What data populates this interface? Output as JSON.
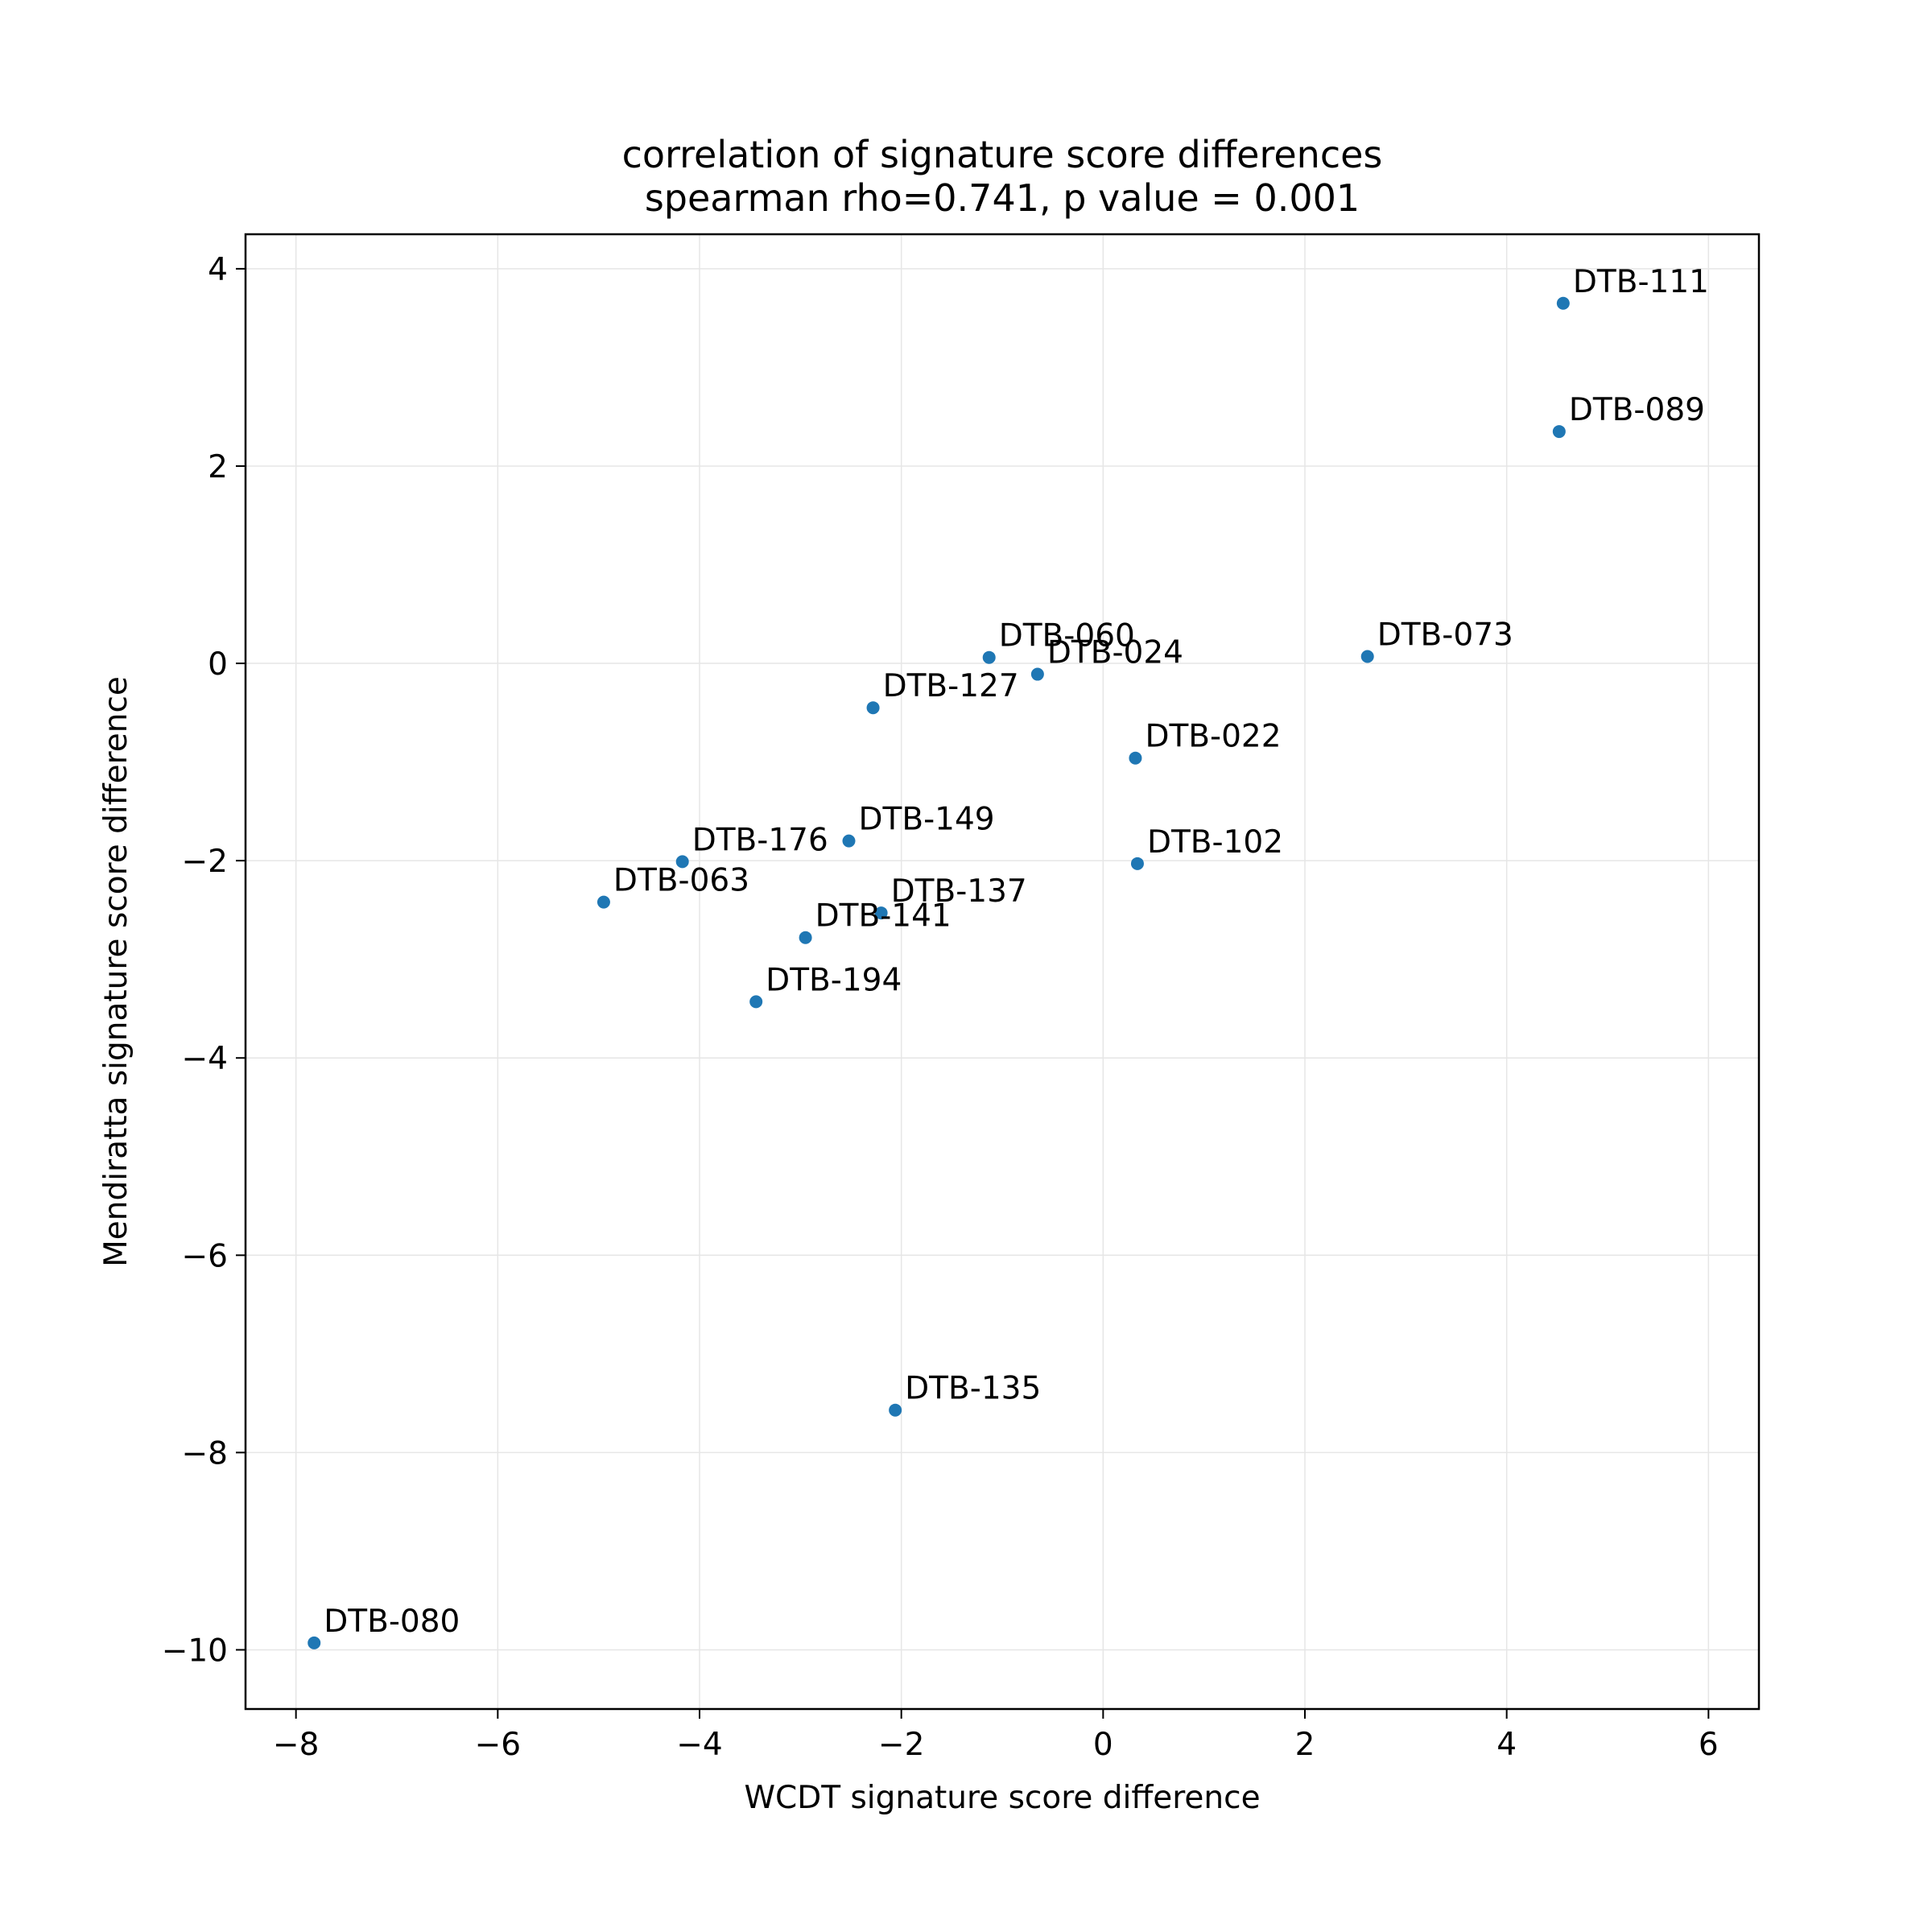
{
  "chart_data": {
    "type": "scatter",
    "title": "correlation of signature score differences",
    "subtitle": "spearman rho=0.741, p value = 0.001",
    "xlabel": "WCDT signature score difference",
    "ylabel": "Mendiratta signature score difference",
    "xlim": [
      -8.5,
      6.5
    ],
    "ylim": [
      -10.6,
      4.35
    ],
    "xticks": [
      -8,
      -6,
      -4,
      -2,
      0,
      2,
      4,
      6
    ],
    "yticks": [
      -10,
      -8,
      -6,
      -4,
      -2,
      0,
      2,
      4
    ],
    "xtick_labels": [
      "−8",
      "−6",
      "−4",
      "−2",
      "0",
      "2",
      "4",
      "6"
    ],
    "ytick_labels": [
      "−10",
      "−8",
      "−6",
      "−4",
      "−2",
      "0",
      "2",
      "4"
    ],
    "grid": true,
    "point_color": "#1f77b4",
    "points": [
      {
        "label": "DTB-111",
        "x": 4.56,
        "y": 3.65
      },
      {
        "label": "DTB-089",
        "x": 4.52,
        "y": 2.35
      },
      {
        "label": "DTB-073",
        "x": 2.62,
        "y": 0.07
      },
      {
        "label": "DTB-060",
        "x": -1.13,
        "y": 0.06
      },
      {
        "label": "DTB-024",
        "x": -0.65,
        "y": -0.11
      },
      {
        "label": "DTB-127",
        "x": -2.28,
        "y": -0.45
      },
      {
        "label": "DTB-022",
        "x": 0.32,
        "y": -0.96
      },
      {
        "label": "DTB-149",
        "x": -2.52,
        "y": -1.8
      },
      {
        "label": "DTB-176",
        "x": -4.17,
        "y": -2.01
      },
      {
        "label": "DTB-102",
        "x": 0.34,
        "y": -2.03
      },
      {
        "label": "DTB-063",
        "x": -4.95,
        "y": -2.42
      },
      {
        "label": "DTB-137",
        "x": -2.2,
        "y": -2.53
      },
      {
        "label": "DTB-141",
        "x": -2.95,
        "y": -2.78
      },
      {
        "label": "DTB-194",
        "x": -3.44,
        "y": -3.43
      },
      {
        "label": "DTB-135",
        "x": -2.06,
        "y": -7.57
      },
      {
        "label": "DTB-080",
        "x": -7.82,
        "y": -9.93
      }
    ]
  }
}
